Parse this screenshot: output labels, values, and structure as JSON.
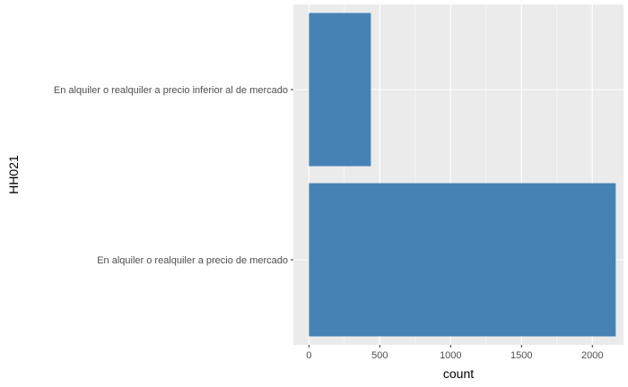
{
  "chart_data": {
    "type": "bar",
    "orientation": "horizontal",
    "categories": [
      "En alquiler o realquiler a precio inferior al de mercado",
      "En alquiler o realquiler a precio de mercado"
    ],
    "values": [
      437,
      2165
    ],
    "xlabel": "count",
    "ylabel": "HH021",
    "xlim": [
      -110,
      2220
    ],
    "xticks": [
      0,
      500,
      1000,
      1500,
      2000
    ],
    "xtick_labels": [
      "0",
      "500",
      "1000",
      "1500",
      "2000"
    ],
    "grid": true,
    "bar_color": "#4682b4",
    "panel_color": "#ebebeb",
    "grid_color": "#ffffff"
  }
}
